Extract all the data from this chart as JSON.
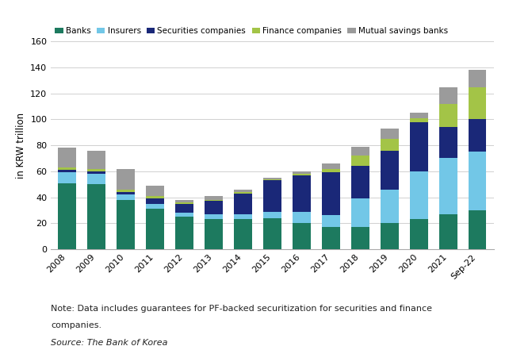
{
  "years": [
    "2008",
    "2009",
    "2010",
    "2011",
    "2012",
    "2013",
    "2014",
    "2015",
    "2016",
    "2017",
    "2018",
    "2019",
    "2020",
    "2021",
    "Sep-22"
  ],
  "banks": [
    51,
    50,
    38,
    31,
    25,
    23,
    23,
    24,
    20,
    17,
    17,
    20,
    23,
    27,
    30
  ],
  "insurers": [
    8,
    8,
    4,
    4,
    3,
    4,
    4,
    5,
    9,
    9,
    22,
    26,
    37,
    43,
    45
  ],
  "securities": [
    2,
    2,
    2,
    4,
    7,
    10,
    16,
    24,
    28,
    33,
    25,
    30,
    38,
    24,
    25
  ],
  "finance": [
    2,
    2,
    2,
    2,
    1,
    1,
    1,
    1,
    1,
    3,
    8,
    9,
    3,
    18,
    25
  ],
  "mutual": [
    15,
    14,
    16,
    8,
    2,
    3,
    2,
    1,
    2,
    4,
    7,
    8,
    4,
    13,
    13
  ],
  "colors": {
    "banks": "#1d7a5f",
    "insurers": "#72c7e7",
    "securities": "#1a2878",
    "finance": "#a3c447",
    "mutual": "#9b9b9b"
  },
  "legend_labels": [
    "Banks",
    "Insurers",
    "Securities companies",
    "Finance companies",
    "Mutual savings banks"
  ],
  "ylabel": "in KRW trillion",
  "ylim": [
    0,
    160
  ],
  "yticks": [
    0,
    20,
    40,
    60,
    80,
    100,
    120,
    140,
    160
  ],
  "note_line1": "Note: Data includes guarantees for PF-backed securitization for securities and finance",
  "note_line2": "companies.",
  "source": "Source: The Bank of Korea",
  "bg_color": "#ffffff",
  "label_fontsize": 8.5,
  "tick_fontsize": 8,
  "note_fontsize": 8,
  "source_fontsize": 8
}
